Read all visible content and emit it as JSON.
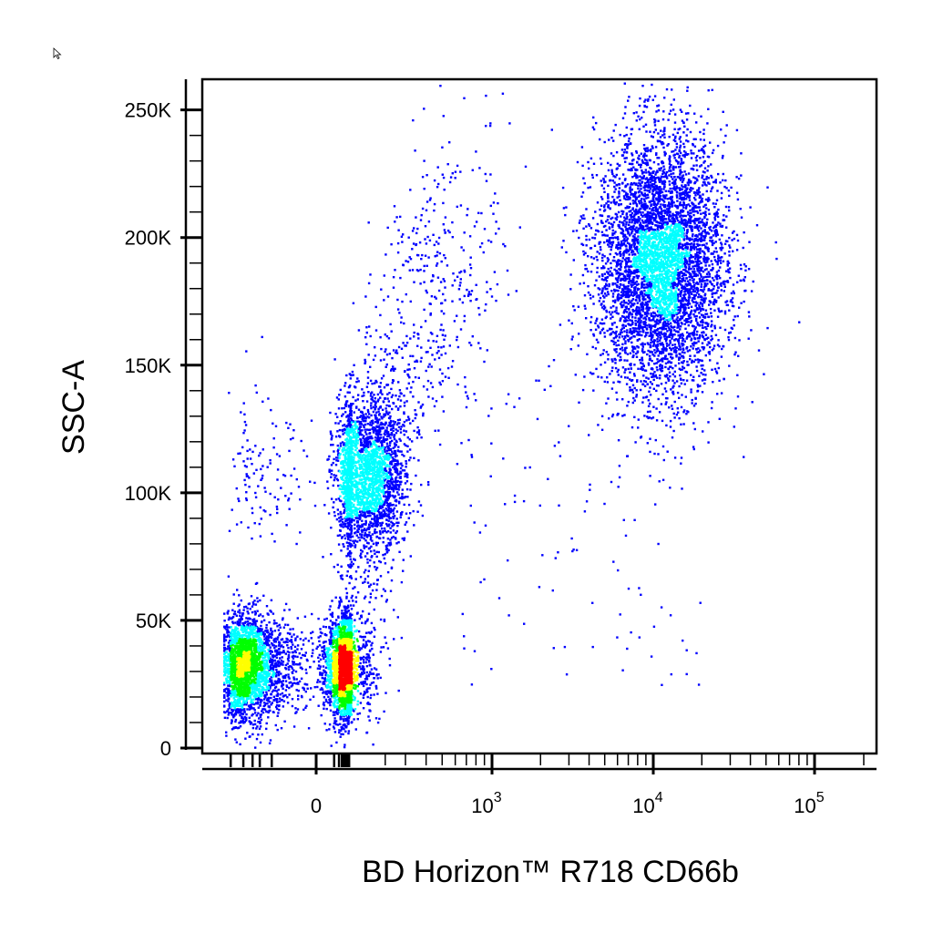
{
  "chart_data": {
    "type": "scatter",
    "style": "density pseudocolor dot plot (flow cytometry)",
    "xlabel": "BD Horizon™ R718 CD66b",
    "ylabel": "SSC-A",
    "x_scale": "biexponential (linear near 0, log above)",
    "x_ticks": [
      {
        "value": 0,
        "label": "0"
      },
      {
        "value": 1000,
        "base": "10",
        "exp": "3"
      },
      {
        "value": 10000,
        "base": "10",
        "exp": "4"
      },
      {
        "value": 100000,
        "base": "10",
        "exp": "5"
      }
    ],
    "y_ticks": [
      {
        "value": 0,
        "label": "0"
      },
      {
        "value": 50000,
        "label": "50K"
      },
      {
        "value": 100000,
        "label": "100K"
      },
      {
        "value": 150000,
        "label": "150K"
      },
      {
        "value": 200000,
        "label": "200K"
      },
      {
        "value": 250000,
        "label": "250K"
      }
    ],
    "ylim": [
      0,
      262000
    ],
    "xlim": [
      -150,
      200000
    ],
    "grid": false,
    "colormap": [
      "#0000ff",
      "#00ffff",
      "#00ff00",
      "#ffff00",
      "#ff0000"
    ],
    "populations": [
      {
        "center_x": 0,
        "center_y": 32000,
        "spread_x": 60,
        "spread_y": 10000,
        "relative_density": "high"
      },
      {
        "center_x": 120,
        "center_y": 108000,
        "spread_x": 70,
        "spread_y": 15000,
        "relative_density": "medium"
      },
      {
        "center_x": 11000,
        "center_y": 190000,
        "spread_x_log10": 0.2,
        "spread_y": 25000,
        "relative_density": "high"
      }
    ]
  },
  "icons": {
    "cursor": "mouse-pointer-icon"
  }
}
